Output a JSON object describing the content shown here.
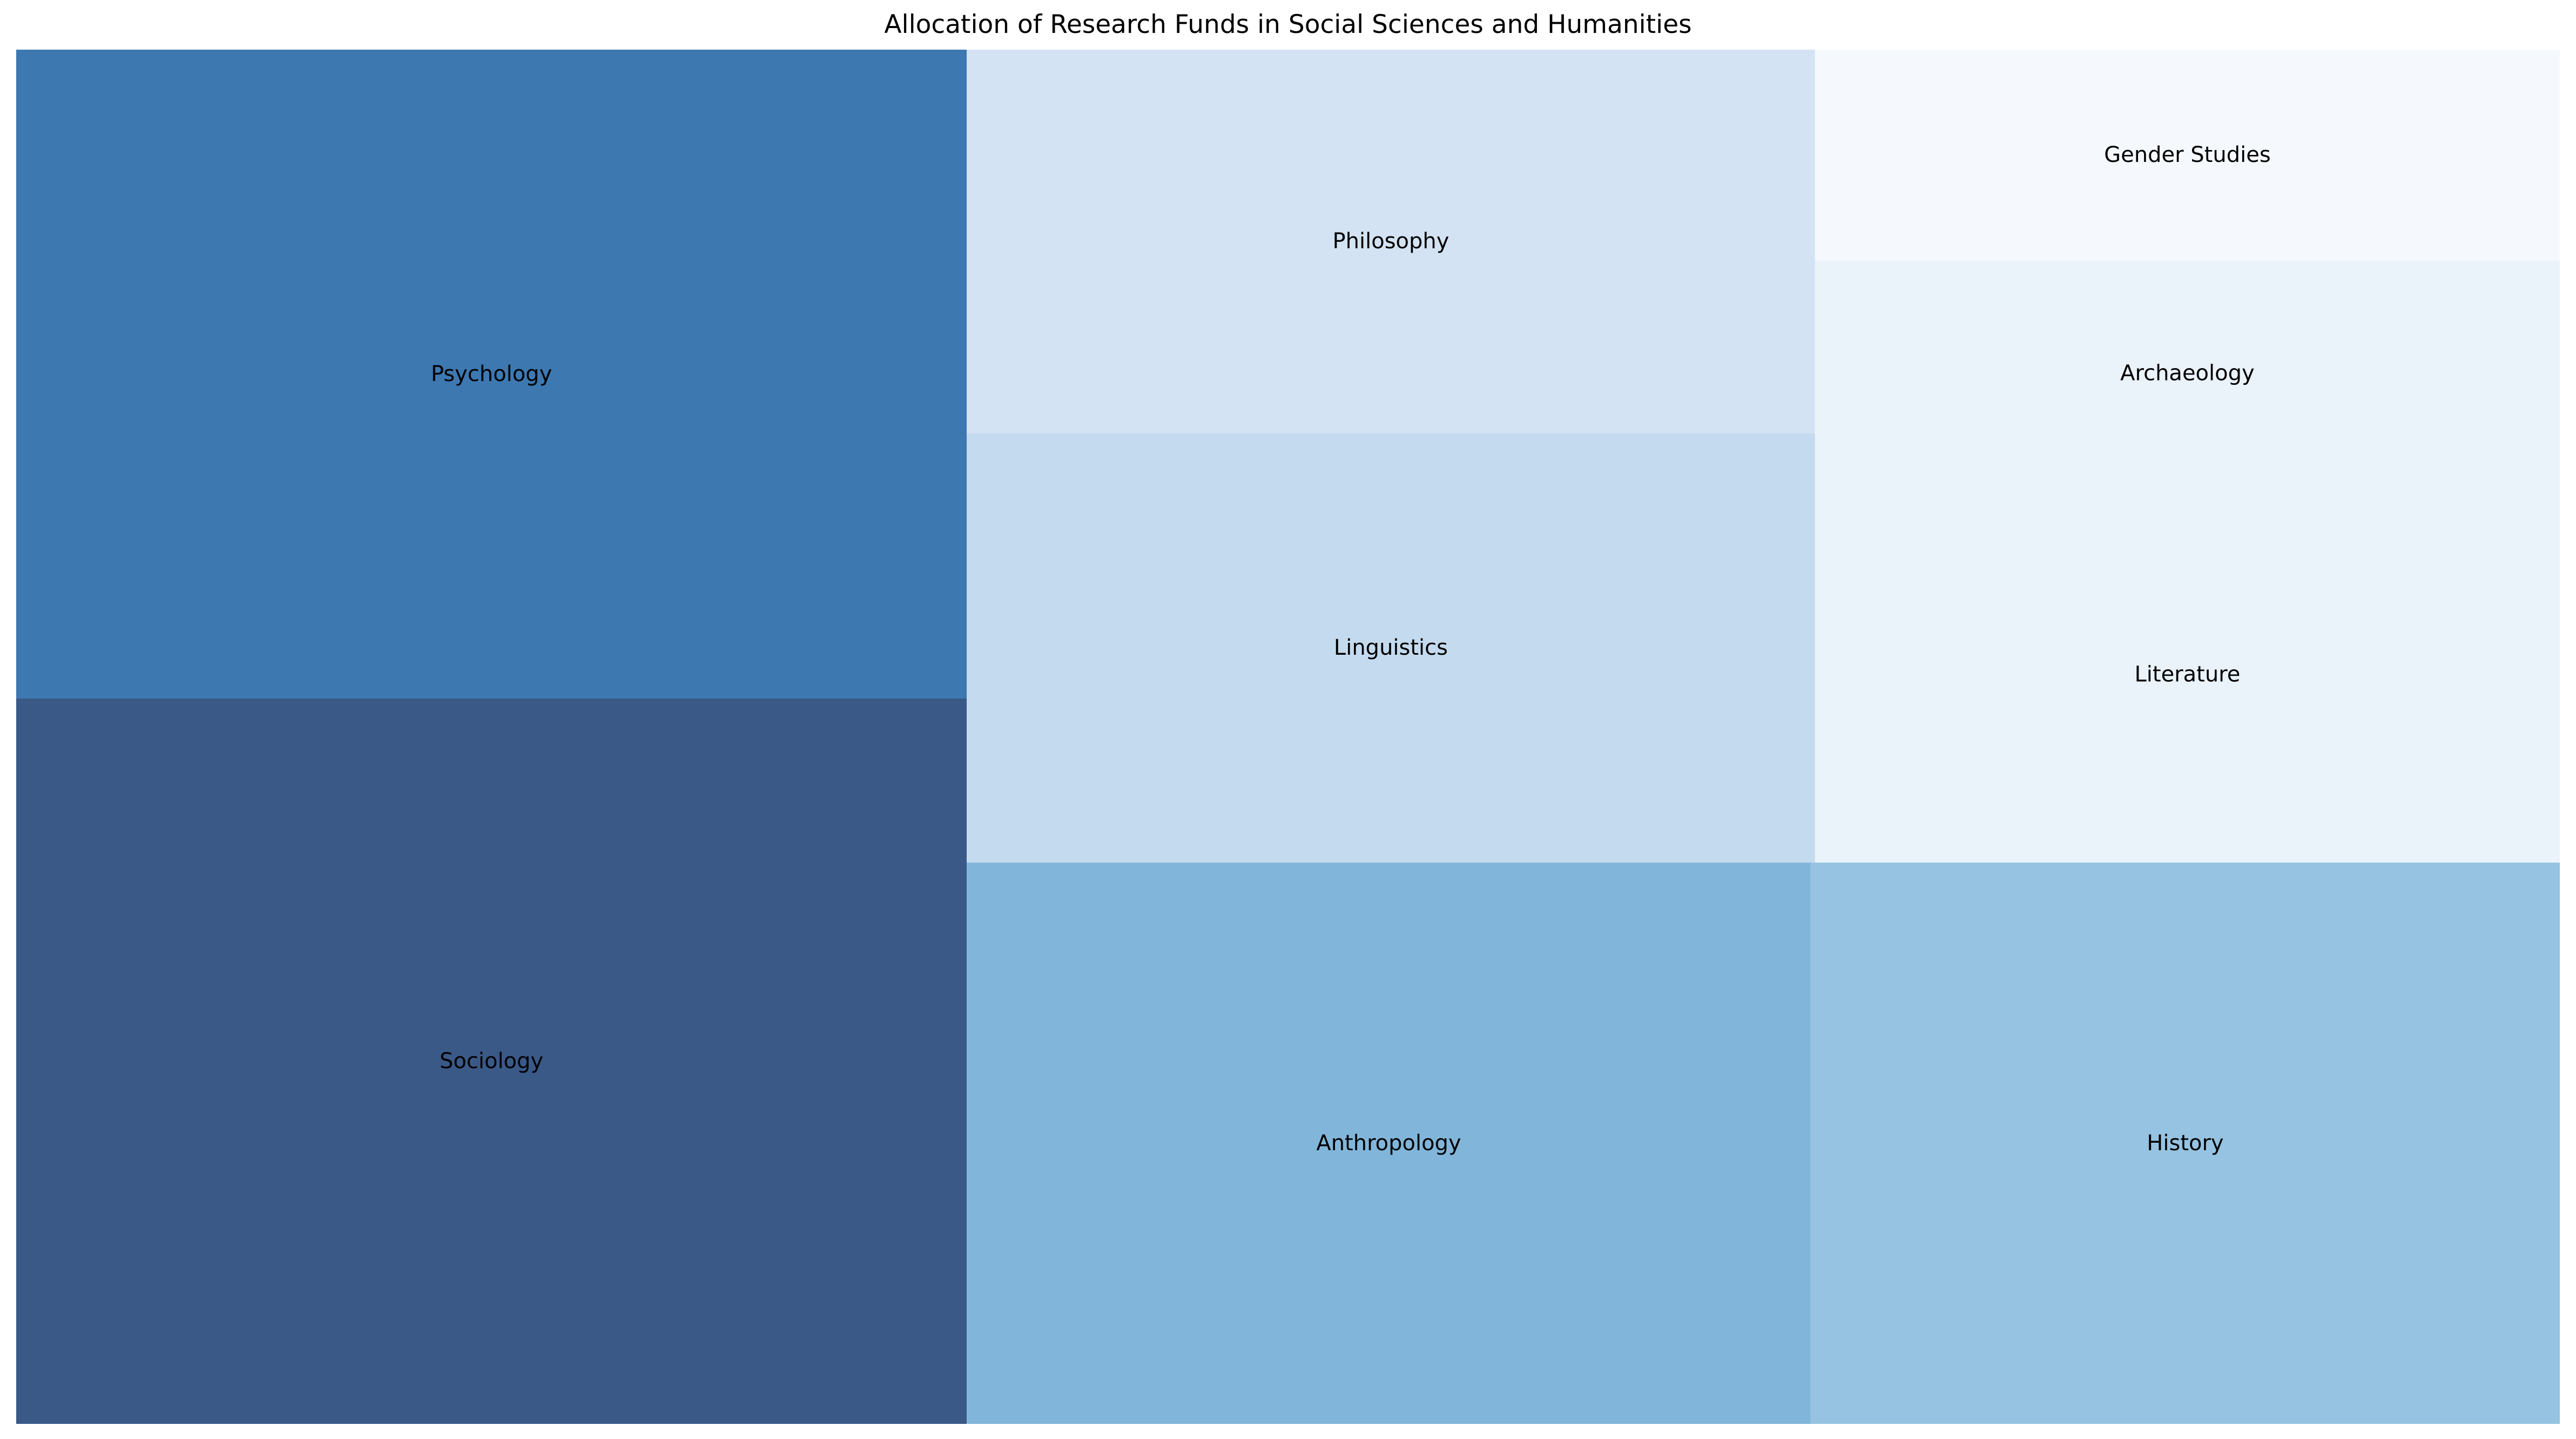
{
  "chart_data": {
    "type": "treemap",
    "title": "Allocation of Research Funds in Social Sciences and Humanities",
    "xlabel": "",
    "ylabel": "",
    "grid": false,
    "legend": "none",
    "items": [
      {
        "label": "Sociology",
        "value": 24.6,
        "color": "#3a5987"
      },
      {
        "label": "Psychology",
        "value": 22.0,
        "color": "#3d78b1"
      },
      {
        "label": "Anthropology",
        "value": 16.9,
        "color": "#81b6da"
      },
      {
        "label": "History",
        "value": 15.0,
        "color": "#95c3e1"
      },
      {
        "label": "Linguistics",
        "value": 13.0,
        "color": "#c4daee"
      },
      {
        "label": "Philosophy",
        "value": 11.6,
        "color": "#d3e3f3"
      },
      {
        "label": "Literature",
        "value": 10.0,
        "color": "#eaf2fa"
      },
      {
        "label": "Archaeology",
        "value": 6.0,
        "color": "#eaf2fa"
      },
      {
        "label": "Gender Studies",
        "value": 5.6,
        "color": "#f5f9fe"
      }
    ]
  }
}
